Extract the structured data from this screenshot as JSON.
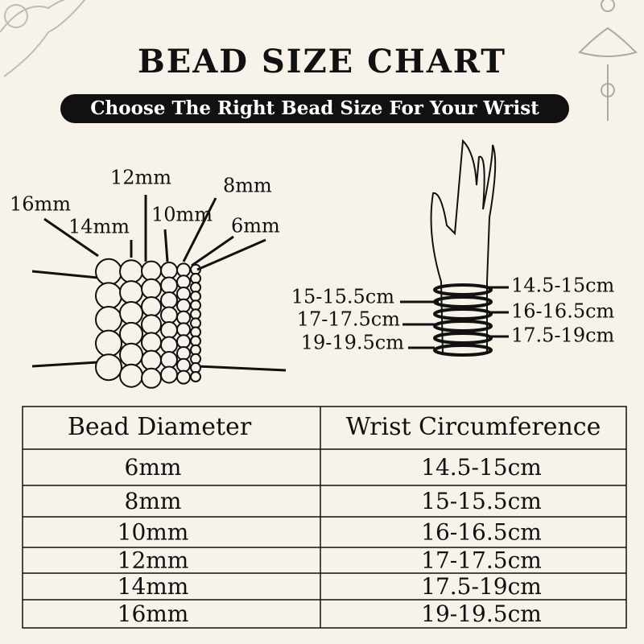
{
  "header": {
    "title": "BEAD SIZE CHART",
    "subtitle": "Choose The Right Bead Size For Your Wrist"
  },
  "bead_labels": [
    "16mm",
    "14mm",
    "12mm",
    "10mm",
    "8mm",
    "6mm"
  ],
  "wrist_labels": {
    "left": [
      "15-15.5cm",
      "17-17.5cm",
      "19-19.5cm"
    ],
    "right": [
      "14.5-15cm",
      "16-16.5cm",
      "17.5-19cm"
    ]
  },
  "table": {
    "headers": [
      "Bead Diameter",
      "Wrist Circumference"
    ],
    "rows": [
      [
        "6mm",
        "14.5-15cm"
      ],
      [
        "8mm",
        "15-15.5cm"
      ],
      [
        "10mm",
        "16-16.5cm"
      ],
      [
        "12mm",
        "17-17.5cm"
      ],
      [
        "14mm",
        "17.5-19cm"
      ],
      [
        "16mm",
        "19-19.5cm"
      ]
    ]
  }
}
